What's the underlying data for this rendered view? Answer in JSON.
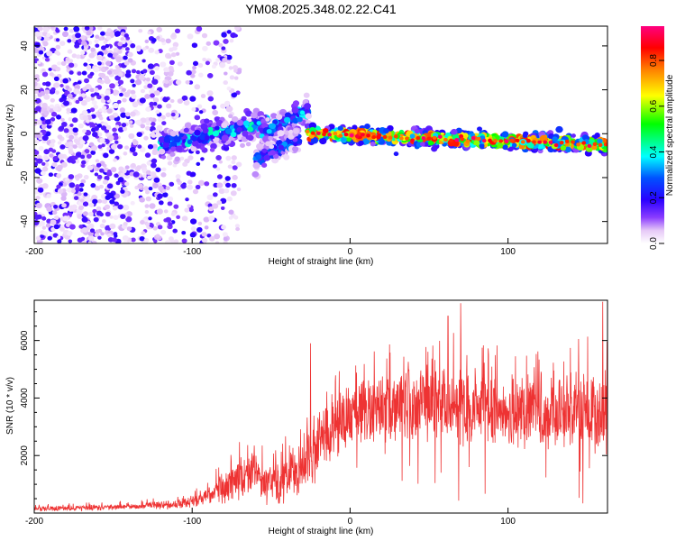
{
  "figure_title": "YM08.2025.348.02.22.C41",
  "chart_data": [
    {
      "type": "heatmap",
      "title": "YM08.2025.348.02.22.C41",
      "xlabel": "Height of straight line (km)",
      "ylabel": "Frequency (Hz)",
      "xlim": [
        -200,
        163
      ],
      "ylim": [
        -50,
        49
      ],
      "x_ticks": [
        -200,
        -100,
        0,
        100
      ],
      "y_ticks": [
        -40,
        -20,
        0,
        20,
        40
      ],
      "colorbar": {
        "label": "Normalized spectral amplitude",
        "range": [
          0.0,
          0.95
        ],
        "ticks": [
          0.0,
          0.2,
          0.4,
          0.6,
          0.8
        ],
        "colormap": [
          "#ffffff",
          "#e6c8f7",
          "#6a00ff",
          "#0000ff",
          "#00ffff",
          "#00ff00",
          "#ffff00",
          "#ff8000",
          "#ff0000",
          "#ff0080"
        ]
      },
      "features": [
        {
          "name": "background_noise",
          "x_range": [
            -200,
            -90
          ],
          "freq_range": [
            -50,
            49
          ],
          "amplitude": 0.15
        },
        {
          "name": "onset_segment",
          "x_range": [
            -120,
            -52
          ],
          "freq_center": [
            -5,
            5
          ],
          "amplitude": 0.4
        },
        {
          "name": "branch_up",
          "x_range": [
            -56,
            -26
          ],
          "freq_center": [
            0,
            11
          ],
          "amplitude": 0.35
        },
        {
          "name": "branch_down",
          "x_range": [
            -60,
            -32
          ],
          "freq_center": [
            -12,
            -2
          ],
          "amplitude": 0.3
        },
        {
          "name": "main_line",
          "x_range": [
            -27,
            163
          ],
          "freq_center": [
            0,
            -5
          ],
          "amplitude": 0.8
        }
      ]
    },
    {
      "type": "line",
      "xlabel": "Height of straight line (km)",
      "ylabel": "SNR (10 * v/v)",
      "xlim": [
        -200,
        163
      ],
      "ylim": [
        0,
        7400
      ],
      "x_ticks": [
        -200,
        -100,
        0,
        100
      ],
      "y_ticks": [
        2000,
        4000,
        6000
      ],
      "color": "#ee3333",
      "envelope": {
        "x": [
          -200,
          -150,
          -110,
          -100,
          -90,
          -80,
          -70,
          -62,
          -55,
          -45,
          -40,
          -30,
          -25,
          -15,
          -10,
          0,
          20,
          50,
          70,
          100,
          130,
          150,
          163
        ],
        "mean": [
          150,
          200,
          300,
          400,
          600,
          900,
          1200,
          1400,
          1100,
          900,
          1200,
          1700,
          2000,
          2700,
          3100,
          3300,
          3700,
          3800,
          3700,
          3600,
          3500,
          3600,
          3500
        ],
        "spread": [
          80,
          100,
          150,
          200,
          300,
          500,
          700,
          800,
          700,
          600,
          800,
          900,
          1000,
          1100,
          1200,
          1100,
          1100,
          1200,
          1300,
          1200,
          1200,
          1300,
          1400
        ]
      },
      "notable_peaks": [
        {
          "x": -25,
          "y": 5900
        },
        {
          "x": 62,
          "y": 6850
        },
        {
          "x": 70,
          "y": 7300
        },
        {
          "x": 160,
          "y": 7350
        }
      ]
    }
  ]
}
